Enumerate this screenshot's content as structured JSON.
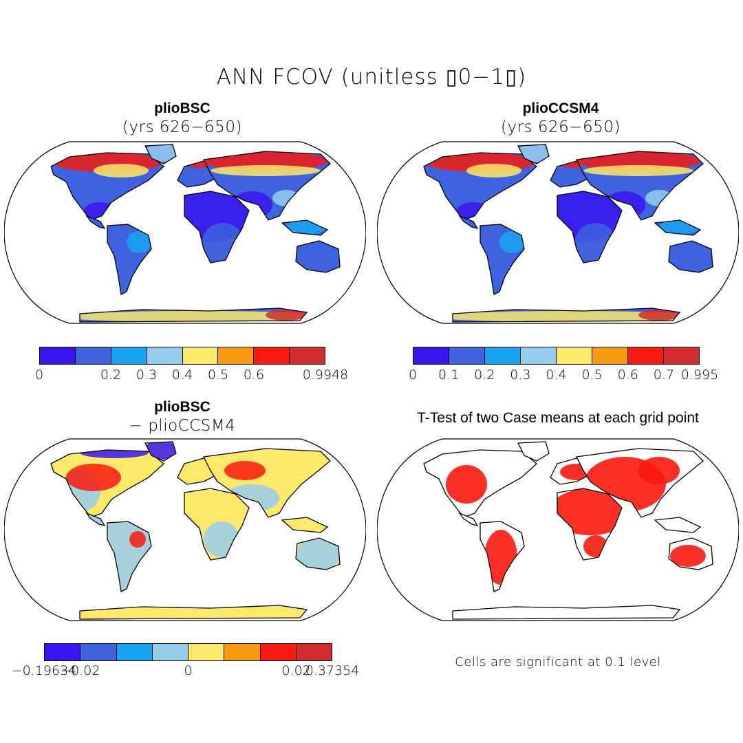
{
  "figure_title": "ANN FCOV (unitless ▯0−1▯)",
  "palette": [
    "#3a14f0",
    "#3f63de",
    "#17a4f2",
    "#96cdee",
    "#fbe96a",
    "#f99b0f",
    "#f91a10",
    "#d32c2c"
  ],
  "panels": {
    "top_left": {
      "title": "plioBSC",
      "subtitle": "(yrs 626−650)"
    },
    "top_right": {
      "title": "plioCCSM4",
      "subtitle": "(yrs 626−650)"
    },
    "bottom_left": {
      "title": "plioBSC",
      "subtitle": "− plioCCSM4"
    },
    "bottom_right": {
      "title": "T-Test of two Case means at each grid point",
      "note": "Cells are significant at 0.1 level"
    }
  },
  "colorbars": {
    "top_left": [
      "0",
      "",
      "0.2",
      "0.3",
      "0.4",
      "0.5",
      "0.6",
      "",
      "0.9948"
    ],
    "top_right": [
      "0",
      "0.1",
      "0.2",
      "0.3",
      "0.4",
      "0.5",
      "0.6",
      "0.7",
      "0.995"
    ],
    "bottom_left": [
      "−0.19634",
      "−0.02",
      "",
      "",
      "0",
      "",
      "",
      "0.02",
      "0.37354"
    ]
  }
}
